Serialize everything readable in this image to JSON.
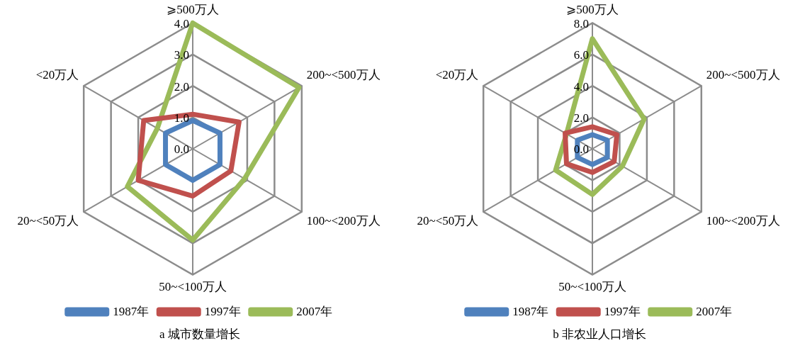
{
  "chart_data": [
    {
      "type": "radar",
      "title": "a 城市数量增长",
      "categories": [
        "⩾500万人",
        "200~<500万人",
        "100~<200万人",
        "50~<100万人",
        "20~<50万人",
        "<20万人"
      ],
      "series": [
        {
          "name": "1987年",
          "color": "#4f81bd",
          "values": [
            0.9,
            1.0,
            1.0,
            1.0,
            1.0,
            1.0
          ]
        },
        {
          "name": "1997年",
          "color": "#c0504d",
          "values": [
            1.1,
            1.7,
            1.4,
            1.5,
            2.0,
            1.8
          ]
        },
        {
          "name": "2007年",
          "color": "#9bbb59",
          "values": [
            4.0,
            3.9,
            1.9,
            2.9,
            2.4,
            1.3
          ]
        }
      ],
      "ylim": [
        0,
        4
      ],
      "yticks": [
        {
          "value": 0,
          "label": "0.0"
        },
        {
          "value": 1,
          "label": "1.0"
        },
        {
          "value": 2,
          "label": "2.0"
        },
        {
          "value": 3,
          "label": "3.0"
        },
        {
          "value": 4,
          "label": "4.0"
        }
      ],
      "grid": true,
      "legend": "bottom",
      "marker": "none",
      "line_style": "solid"
    },
    {
      "type": "radar",
      "title": "b 非农业人口增长",
      "categories": [
        "⩾500万人",
        "200~<500万人",
        "100~<200万人",
        "50~<100万人",
        "20~<50万人",
        "<20万人"
      ],
      "series": [
        {
          "name": "1987年",
          "color": "#4f81bd",
          "values": [
            0.9,
            1.1,
            1.1,
            1.0,
            1.1,
            1.1
          ]
        },
        {
          "name": "1997年",
          "color": "#c0504d",
          "values": [
            1.4,
            1.8,
            1.6,
            1.5,
            1.9,
            2.0
          ]
        },
        {
          "name": "2007年",
          "color": "#9bbb59",
          "values": [
            7.0,
            3.8,
            2.2,
            2.9,
            2.7,
            1.9
          ]
        }
      ],
      "ylim": [
        0,
        8
      ],
      "yticks": [
        {
          "value": 0,
          "label": "0.0"
        },
        {
          "value": 2,
          "label": "2.0"
        },
        {
          "value": 4,
          "label": "4.0"
        },
        {
          "value": 6,
          "label": "6.0"
        },
        {
          "value": 8,
          "label": "8.0"
        }
      ],
      "grid": true,
      "legend": "bottom",
      "marker": "none",
      "line_style": "solid"
    }
  ]
}
